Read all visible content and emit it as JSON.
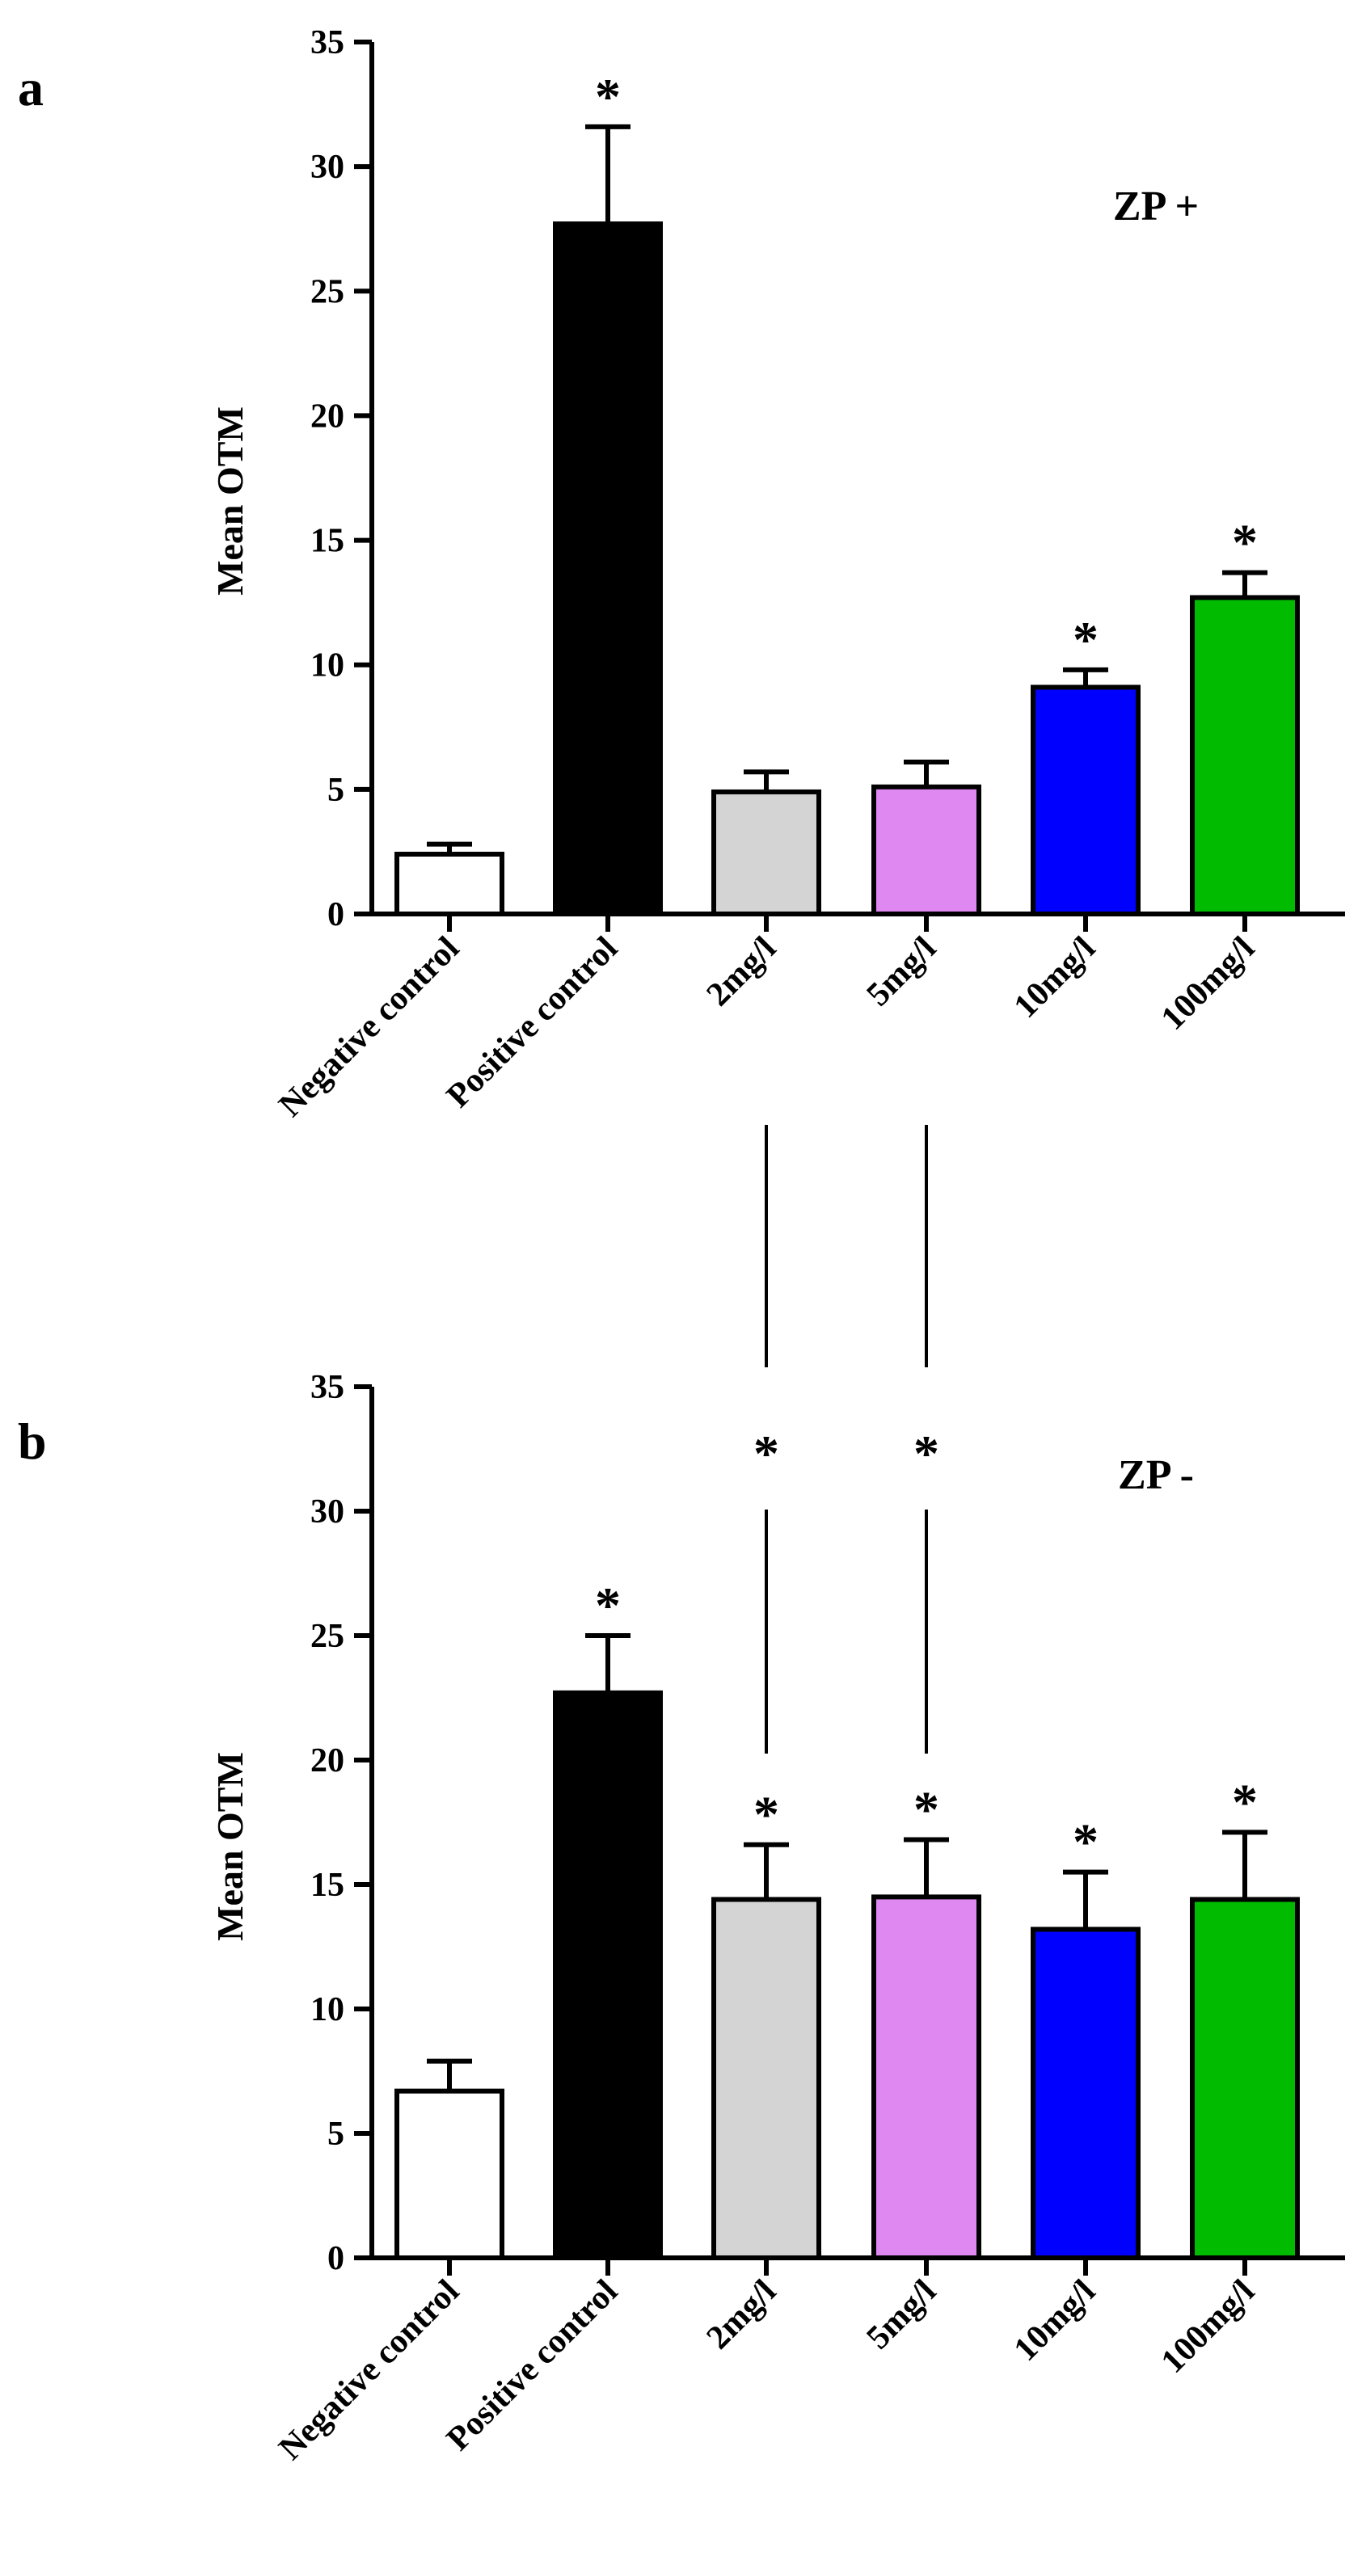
{
  "colors": {
    "axis": "#000000",
    "bars": [
      "#ffffff",
      "#000000",
      "#d4d4d4",
      "#df88f2",
      "#0000ff",
      "#00bb00"
    ]
  },
  "chart_data": [
    {
      "type": "bar",
      "panel_label": "a",
      "title": "",
      "annotation": "ZP +",
      "xlabel": "",
      "ylabel": "Mean OTM",
      "ylim": [
        0,
        35
      ],
      "yticks": [
        0,
        5,
        10,
        15,
        20,
        25,
        30,
        35
      ],
      "categories": [
        "Negative control",
        "Positive control",
        "2mg/l",
        "5mg/l",
        "10mg/l",
        "100mg/l"
      ],
      "values": [
        2.4,
        27.7,
        4.9,
        5.1,
        9.1,
        12.7
      ],
      "errors": [
        0.4,
        3.9,
        0.8,
        1.0,
        0.7,
        1.0
      ],
      "significant": [
        false,
        true,
        false,
        false,
        true,
        true
      ],
      "significance_marker": "*",
      "grid": false
    },
    {
      "type": "bar",
      "panel_label": "b",
      "title": "",
      "annotation": "ZP -",
      "xlabel": "",
      "ylabel": "Mean OTM",
      "ylim": [
        0,
        35
      ],
      "yticks": [
        0,
        5,
        10,
        15,
        20,
        25,
        30,
        35
      ],
      "categories": [
        "Negative control",
        "Positive control",
        "2mg/l",
        "5mg/l",
        "10mg/l",
        "100mg/l"
      ],
      "values": [
        6.7,
        22.7,
        14.4,
        14.5,
        13.2,
        14.4
      ],
      "errors": [
        1.2,
        2.3,
        2.2,
        2.3,
        2.3,
        2.7
      ],
      "significant": [
        false,
        true,
        true,
        true,
        true,
        true
      ],
      "significance_marker": "*",
      "grid": false,
      "cross_panel_comparisons": [
        {
          "category": "2mg/l",
          "marker": "*"
        },
        {
          "category": "5mg/l",
          "marker": "*"
        }
      ]
    }
  ]
}
